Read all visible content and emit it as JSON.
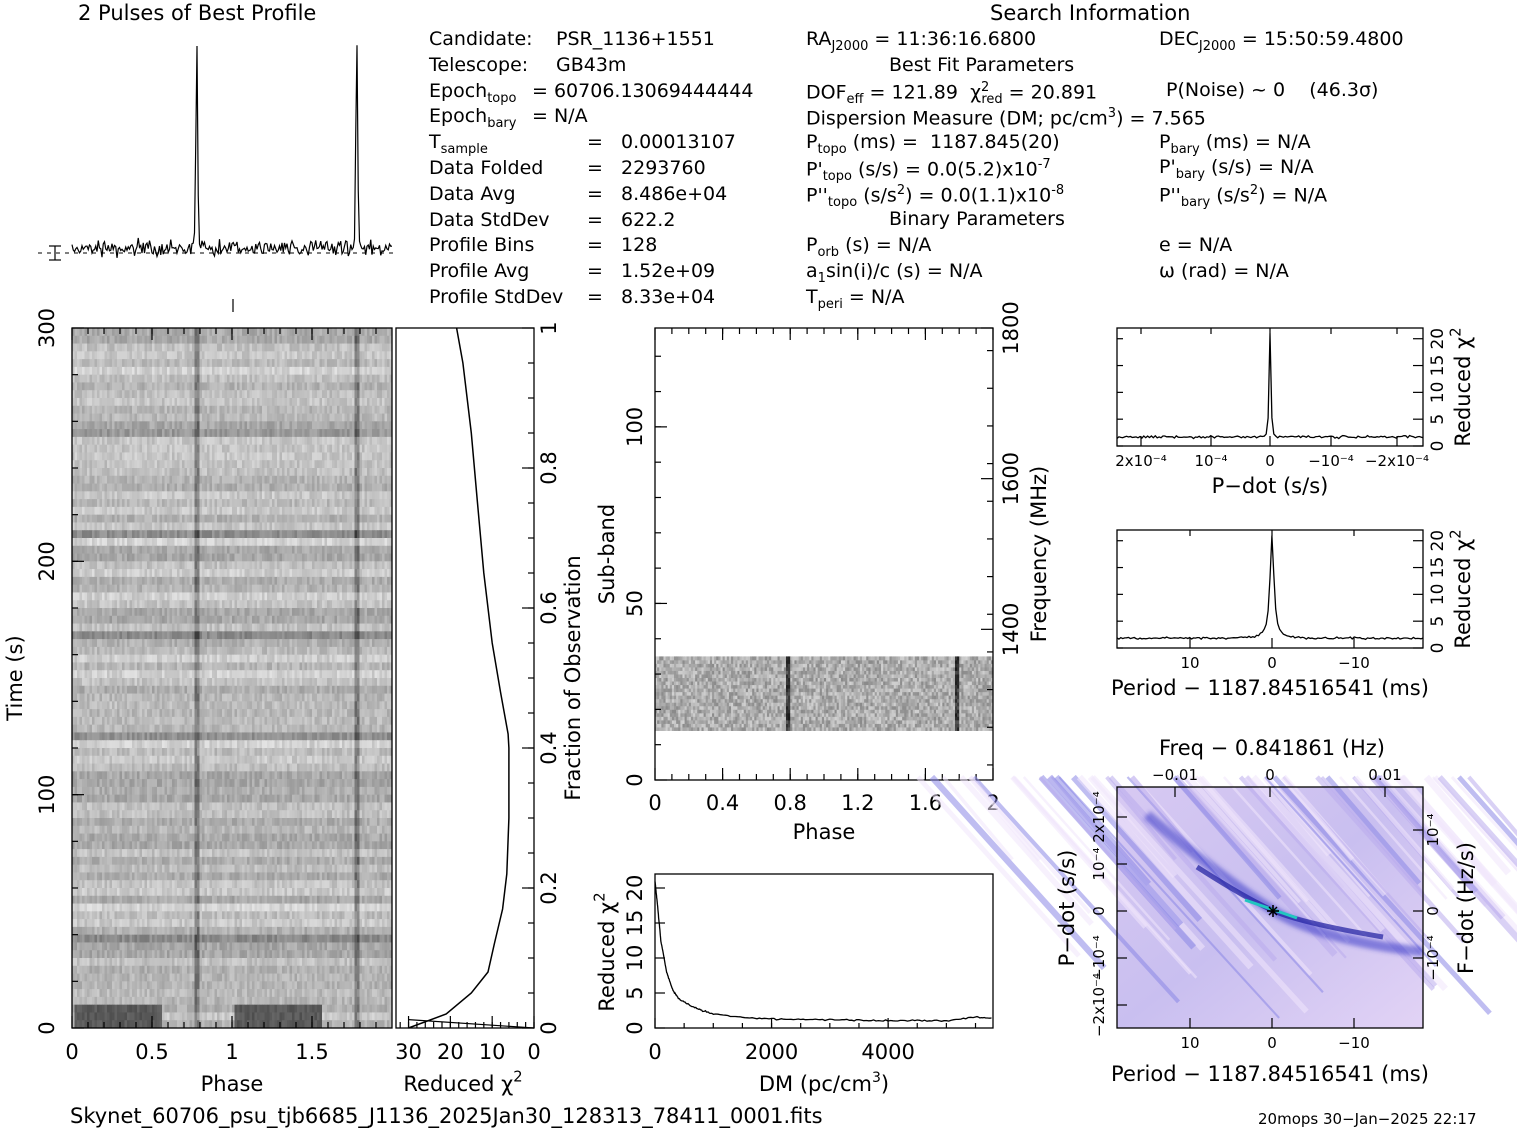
{
  "header": {
    "profile_title": "2 Pulses of Best Profile",
    "search_title": "Search Information"
  },
  "candidate_info": [
    {
      "k": "Candidate:",
      "v": "PSR_1136+1551"
    },
    {
      "k": "Telescope:",
      "v": "GB43m"
    },
    {
      "k": "Epoch",
      "sub": "topo",
      "v": "= 60706.13069444444"
    },
    {
      "k": "Epoch",
      "sub": "bary",
      "v": "= N/A"
    },
    {
      "k": "T",
      "sub": "sample",
      "v": "=   0.00013107"
    },
    {
      "k": "Data Folded",
      "v": "=   2293760"
    },
    {
      "k": "Data Avg",
      "v": "=   8.486e+04"
    },
    {
      "k": "Data StdDev",
      "v": "=   622.2"
    },
    {
      "k": "Profile Bins",
      "v": "=   128"
    },
    {
      "k": "Profile Avg",
      "v": "=   1.52e+09"
    },
    {
      "k": "Profile StdDev",
      "v": "=   8.33e+04"
    }
  ],
  "search_info": {
    "ra": "RA",
    "ra_sub": "J2000",
    "ra_val": " = 11:36:16.6800",
    "dec": "DEC",
    "dec_sub": "J2000",
    "dec_val": " = 15:50:59.4800",
    "best_fit_title": "Best Fit Parameters",
    "dof": "DOF",
    "dof_sub": "eff",
    "dof_val": " = 121.89",
    "chi": "χ",
    "chi_sup": "2",
    "chi_sub": "red",
    "chi_val": " = 20.891",
    "pnoise": "P(Noise) ~ 0    (46.3σ)",
    "dm": "Dispersion Measure (DM; pc/cm",
    "dm_sup": "3",
    "dm_val": ") = 7.565",
    "ptopo": "P",
    "ptopo_sub": "topo",
    "ptopo_val": " (ms) =  1187.845(20)",
    "pdtopo": "P'",
    "pdtopo_sub": "topo",
    "pdtopo_val": " (s/s) = 0.0(5.2)x10",
    "pdtopo_exp": "-7",
    "pddtopo": "P''",
    "pddtopo_sub": "topo",
    "pddtopo_val": " (s/s",
    "pddtopo_sup": "2",
    "pddtopo_val2": ") = 0.0(1.1)x10",
    "pddtopo_exp": "-8",
    "pbary": "P",
    "pbary_sub": "bary",
    "pbary_val": " (ms) = N/A",
    "pdbary": "P'",
    "pdbary_sub": "bary",
    "pdbary_val": " (s/s) = N/A",
    "pddbary": "P''",
    "pddbary_sub": "bary",
    "pddbary_val": " (s/s",
    "pddbary_sup": "2",
    "pddbary_val2": ") = N/A",
    "binary_title": "Binary Parameters",
    "porb": "P",
    "porb_sub": "orb",
    "porb_val": " (s) = N/A",
    "asini": "a",
    "asini_sub": "1",
    "asini_val": "sin(i)/c (s) = N/A",
    "tperi": "T",
    "tperi_sub": "peri",
    "tperi_val": " = N/A",
    "ecc": "e = N/A",
    "omega": "ω (rad) = N/A"
  },
  "chart_data": [
    {
      "type": "line",
      "title": "2 Pulses of Best Profile",
      "xlim": [
        0,
        2
      ],
      "pulse_phases": [
        0.78,
        1.78
      ],
      "note_pulse_height_rel": 1.0
    },
    {
      "type": "heatmap",
      "name": "time-phase",
      "xlabel": "Phase",
      "ylabel": "Time (s)",
      "xlim": [
        0,
        2
      ],
      "ylim": [
        0,
        300
      ],
      "xticks": [
        "0",
        "0.5",
        "1",
        "1.5"
      ],
      "yticks": [
        "0",
        "100",
        "200",
        "300"
      ],
      "pulse_phases": [
        0.78,
        1.78
      ]
    },
    {
      "type": "line",
      "name": "reduced-chi2-vs-time",
      "xlabel": "Reduced χ²",
      "ylabel": "Fraction of Observation",
      "xlim": [
        33,
        0
      ],
      "ylim": [
        0,
        1
      ],
      "xticks": [
        "30",
        "20",
        "10",
        "0"
      ],
      "yticks": [
        "0",
        "0.2",
        "0.4",
        "0.6",
        "0.8",
        "1"
      ],
      "fraction": [
        0.0,
        0.02,
        0.05,
        0.08,
        0.12,
        0.17,
        0.22,
        0.3,
        0.4,
        0.42,
        0.48,
        0.55,
        0.65,
        0.75,
        0.85,
        0.95,
        1.0
      ],
      "chi2": [
        30,
        21,
        15,
        11,
        9.5,
        7.5,
        6.5,
        6,
        6,
        6.2,
        8,
        10,
        12,
        13.5,
        15,
        17,
        18.5
      ]
    },
    {
      "type": "heatmap",
      "name": "subband-phase",
      "xlabel": "Phase",
      "ylabel": "Sub-band",
      "y2label": "Frequency (MHz)",
      "xlim": [
        0,
        2
      ],
      "ylim": [
        0,
        128
      ],
      "y2lim": [
        1200,
        1800
      ],
      "xticks": [
        "0",
        "0.4",
        "0.8",
        "1.2",
        "1.6",
        "2"
      ],
      "yticks": [
        "0",
        "50",
        "100"
      ],
      "y2ticks": [
        "1400",
        "1600",
        "1800"
      ],
      "data_subbands": [
        14,
        35
      ],
      "pulse_phases": [
        0.78,
        1.78
      ]
    },
    {
      "type": "line",
      "name": "dm-curve",
      "xlabel": "DM (pc/cm³)",
      "ylabel": "Reduced χ²",
      "xlim": [
        0,
        5800
      ],
      "ylim": [
        0,
        22
      ],
      "xticks": [
        "0",
        "2000",
        "4000"
      ],
      "yticks": [
        "0",
        "5",
        "10",
        "15",
        "20"
      ],
      "x": [
        0,
        50,
        100,
        200,
        300,
        400,
        600,
        800,
        1000,
        1500,
        2000,
        2500,
        3000,
        3500,
        4000,
        4500,
        5000,
        5500,
        5800
      ],
      "y": [
        21,
        17,
        12.5,
        8,
        5.5,
        4.3,
        3.2,
        2.5,
        2.0,
        1.5,
        1.3,
        1.2,
        1.2,
        1.1,
        1.0,
        1.1,
        1.0,
        1.6,
        1.4
      ]
    },
    {
      "type": "line",
      "name": "pdot-curve",
      "xlabel": "P-dot (s/s)",
      "ylabel": "Reduced χ²",
      "xlim": [
        0.00026,
        -0.00026
      ],
      "ylim": [
        0,
        22
      ],
      "xticks": [
        "2x10⁻⁴",
        "10⁻⁴",
        "0",
        "−10⁻⁴",
        "−2x10⁻⁴"
      ],
      "yticks": [
        "0",
        "5",
        "10",
        "15",
        "20"
      ],
      "peak": 20.9
    },
    {
      "type": "line",
      "name": "period-curve",
      "xlabel": "Period − 1187.84516541 (ms)",
      "ylabel": "Reduced χ²",
      "xlim": [
        19,
        -19
      ],
      "ylim": [
        0,
        22
      ],
      "xticks": [
        "10",
        "0",
        "−10"
      ],
      "yticks": [
        "0",
        "5",
        "10",
        "15",
        "20"
      ],
      "peak": 20.9
    },
    {
      "type": "heatmap",
      "name": "p-pdot-plane",
      "xlabel": "Period − 1187.84516541 (ms)",
      "ylabel": "P−dot (s/s)",
      "x2label": "Freq − 0.841861 (Hz)",
      "y2label": "F−dot (Hz/s)",
      "xticks": [
        "10",
        "0",
        "−10"
      ],
      "x2ticks": [
        "−0.01",
        "0",
        "0.01"
      ],
      "yticks": [
        "2x10⁻⁴",
        "10⁻⁴",
        "0",
        "−10⁻⁴",
        "−2x10⁻⁴"
      ],
      "y2ticks": [
        "−10⁻⁴",
        "0",
        "10⁻⁴"
      ],
      "best_marker": [
        0,
        0
      ]
    }
  ],
  "labels": {
    "phase": "Phase",
    "time": "Time (s)",
    "reduced": "Reduced",
    "chi": "χ",
    "chi_sup": "2",
    "fraction": "Fraction of Observation",
    "subband": "Sub-band",
    "frequency": "Frequency (MHz)",
    "dm": "DM (pc/cm",
    "dm_sup": "3",
    "dm_close": ")",
    "pdot": "P−dot (s/s)",
    "period": "Period − 1187.84516541 (ms)",
    "freq": "Freq − 0.841861 (Hz)",
    "fdot": "F−dot (Hz/s)"
  },
  "footer": {
    "filename": "Skynet_60706_psu_tjb6685_J1136_2025Jan30_128313_78411_0001.fits",
    "stamp": "20mops 30−Jan−2025 22:17"
  }
}
